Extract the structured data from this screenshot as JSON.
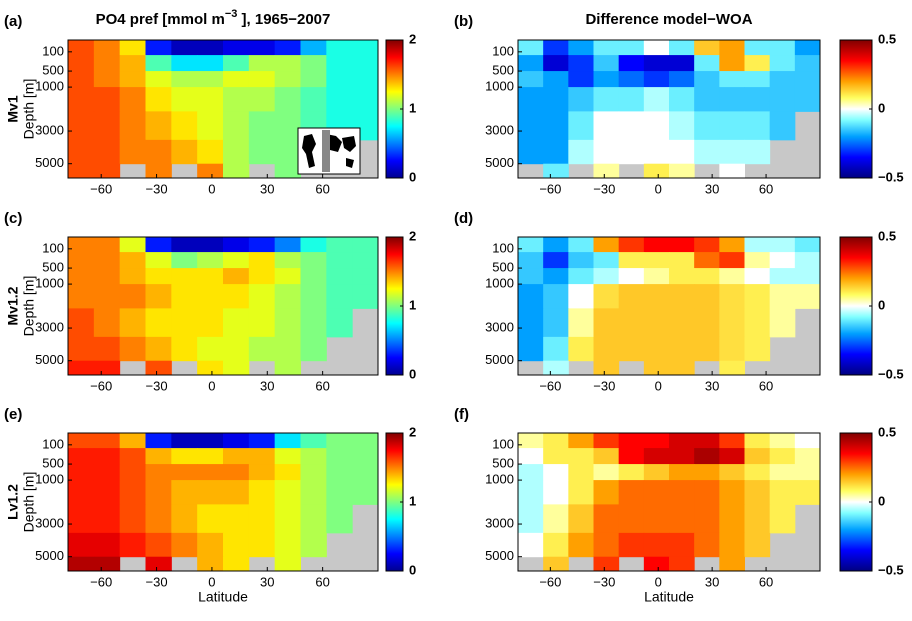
{
  "chart_data": [
    {
      "type": "heatmap",
      "panel": "(a)",
      "title": {
        "text": "PO4 pref [mmol m",
        "sup": "−3",
        "tail": " ], 1965−2007"
      },
      "row_label": "Mv1",
      "ylabel": "Depth [m]",
      "colormap": "jet",
      "x_edges": [
        -78,
        -64,
        -50,
        -36,
        -22,
        -8,
        6,
        20,
        34,
        48,
        62,
        76,
        90
      ],
      "y_edges": [
        0,
        150,
        500,
        1000,
        2000,
        3500,
        5000,
        6000
      ],
      "values": [
        [
          1.6,
          1.5,
          1.3,
          0.3,
          0.1,
          0.1,
          0.2,
          0.2,
          0.3,
          0.6,
          0.8,
          0.8
        ],
        [
          1.6,
          1.5,
          1.4,
          0.9,
          0.7,
          0.7,
          0.9,
          1.1,
          1.1,
          1.0,
          0.8,
          0.8
        ],
        [
          1.6,
          1.5,
          1.4,
          1.2,
          1.1,
          1.1,
          1.2,
          1.2,
          1.1,
          1.0,
          0.8,
          0.8
        ],
        [
          1.6,
          1.6,
          1.5,
          1.3,
          1.2,
          1.2,
          1.1,
          1.1,
          1.0,
          0.9,
          0.8,
          0.8
        ],
        [
          1.6,
          1.6,
          1.5,
          1.4,
          1.3,
          1.2,
          1.1,
          1.0,
          1.0,
          0.9,
          0.8,
          0.8
        ],
        [
          1.6,
          1.6,
          1.5,
          1.5,
          1.4,
          1.3,
          1.1,
          1.0,
          1.0,
          0.9,
          null,
          null
        ],
        [
          1.6,
          1.6,
          null,
          1.5,
          null,
          1.5,
          1.1,
          null,
          1.0,
          null,
          null,
          null
        ]
      ],
      "xlim": [
        -78,
        90
      ],
      "ylim": [
        0,
        6000
      ],
      "xticks": [
        {
          "value": -60,
          "label": "−60"
        },
        {
          "value": -30,
          "label": "−30"
        },
        0,
        30,
        60
      ],
      "yticks": [
        100,
        500,
        1000,
        3000,
        5000
      ],
      "clim": [
        0,
        2
      ],
      "cticks": [
        0,
        1,
        2
      ]
    },
    {
      "type": "heatmap",
      "panel": "(b)",
      "title": {
        "text": "Difference model−WOA"
      },
      "colormap": "diverging",
      "x_edges": [
        -78,
        -64,
        -50,
        -36,
        -22,
        -8,
        6,
        20,
        34,
        48,
        62,
        76,
        90
      ],
      "y_edges": [
        0,
        150,
        500,
        1000,
        2000,
        3500,
        5000,
        6000
      ],
      "values": [
        [
          -0.1,
          -0.3,
          -0.2,
          -0.1,
          -0.1,
          0.0,
          -0.1,
          0.15,
          0.2,
          -0.1,
          -0.1,
          -0.2
        ],
        [
          -0.2,
          -0.4,
          -0.3,
          -0.15,
          -0.35,
          -0.4,
          -0.4,
          -0.1,
          0.2,
          0.1,
          -0.1,
          -0.15
        ],
        [
          -0.15,
          -0.2,
          -0.3,
          -0.2,
          -0.25,
          -0.3,
          -0.25,
          -0.15,
          -0.1,
          -0.1,
          -0.15,
          -0.15
        ],
        [
          -0.2,
          -0.2,
          -0.15,
          -0.1,
          -0.1,
          -0.05,
          -0.1,
          -0.15,
          -0.15,
          -0.15,
          -0.15,
          -0.15
        ],
        [
          -0.2,
          -0.2,
          -0.1,
          0.0,
          0.0,
          0.0,
          -0.05,
          -0.1,
          -0.1,
          -0.1,
          -0.15,
          null
        ],
        [
          -0.2,
          -0.2,
          -0.05,
          0.0,
          0.0,
          0.0,
          0.0,
          -0.05,
          -0.05,
          -0.05,
          null,
          null
        ],
        [
          null,
          -0.1,
          null,
          0.05,
          null,
          0.1,
          0.05,
          null,
          0.0,
          null,
          null,
          null
        ]
      ],
      "xlim": [
        -78,
        90
      ],
      "ylim": [
        0,
        6000
      ],
      "xticks": [
        {
          "value": -60,
          "label": "−60"
        },
        {
          "value": -30,
          "label": "−30"
        },
        0,
        30,
        60
      ],
      "yticks": [
        100,
        500,
        1000,
        3000,
        5000
      ],
      "clim": [
        -0.5,
        0.5
      ],
      "cticks": [
        {
          "value": -0.5,
          "label": "−0.5"
        },
        0,
        0.5
      ]
    },
    {
      "type": "heatmap",
      "panel": "(c)",
      "row_label": "Mv1.2",
      "ylabel": "Depth [m]",
      "colormap": "jet",
      "x_edges": [
        -78,
        -64,
        -50,
        -36,
        -22,
        -8,
        6,
        20,
        34,
        48,
        62,
        76,
        90
      ],
      "y_edges": [
        0,
        150,
        500,
        1000,
        2000,
        3500,
        5000,
        6000
      ],
      "values": [
        [
          1.5,
          1.5,
          1.2,
          0.3,
          0.1,
          0.1,
          0.2,
          0.3,
          0.5,
          0.8,
          0.9,
          0.9
        ],
        [
          1.5,
          1.5,
          1.4,
          1.2,
          1.0,
          1.1,
          1.2,
          1.3,
          1.1,
          1.0,
          0.9,
          0.9
        ],
        [
          1.5,
          1.5,
          1.4,
          1.3,
          1.3,
          1.3,
          1.4,
          1.3,
          1.2,
          1.0,
          0.9,
          0.9
        ],
        [
          1.5,
          1.5,
          1.5,
          1.4,
          1.3,
          1.3,
          1.3,
          1.2,
          1.1,
          1.0,
          0.9,
          0.9
        ],
        [
          1.6,
          1.5,
          1.4,
          1.3,
          1.3,
          1.3,
          1.2,
          1.2,
          1.1,
          1.0,
          0.9,
          null
        ],
        [
          1.6,
          1.6,
          1.5,
          1.4,
          1.3,
          1.2,
          1.2,
          1.1,
          1.1,
          1.0,
          null,
          null
        ],
        [
          1.7,
          1.7,
          null,
          1.6,
          null,
          1.3,
          1.2,
          null,
          1.1,
          null,
          null,
          null
        ]
      ],
      "xlim": [
        -78,
        90
      ],
      "ylim": [
        0,
        6000
      ],
      "xticks": [
        {
          "value": -60,
          "label": "−60"
        },
        {
          "value": -30,
          "label": "−30"
        },
        0,
        30,
        60
      ],
      "yticks": [
        100,
        500,
        1000,
        3000,
        5000
      ],
      "clim": [
        0,
        2
      ],
      "cticks": [
        0,
        1,
        2
      ]
    },
    {
      "type": "heatmap",
      "panel": "(d)",
      "colormap": "diverging",
      "x_edges": [
        -78,
        -64,
        -50,
        -36,
        -22,
        -8,
        6,
        20,
        34,
        48,
        62,
        76,
        90
      ],
      "y_edges": [
        0,
        150,
        500,
        1000,
        2000,
        3500,
        5000,
        6000
      ],
      "values": [
        [
          -0.1,
          -0.2,
          -0.1,
          0.2,
          0.3,
          0.35,
          0.35,
          0.3,
          0.2,
          -0.05,
          -0.05,
          -0.1
        ],
        [
          -0.15,
          -0.3,
          -0.15,
          -0.1,
          0.1,
          0.1,
          0.1,
          0.25,
          0.3,
          0.05,
          0.0,
          -0.05
        ],
        [
          -0.15,
          -0.2,
          -0.1,
          -0.05,
          0.0,
          0.05,
          0.1,
          0.1,
          0.05,
          0.0,
          -0.05,
          -0.05
        ],
        [
          -0.2,
          -0.15,
          0.0,
          0.12,
          0.15,
          0.15,
          0.15,
          0.15,
          0.12,
          0.1,
          0.05,
          0.05
        ],
        [
          -0.2,
          -0.15,
          0.05,
          0.15,
          0.15,
          0.15,
          0.15,
          0.15,
          0.12,
          0.1,
          0.05,
          null
        ],
        [
          -0.2,
          -0.1,
          0.1,
          0.15,
          0.15,
          0.15,
          0.15,
          0.15,
          0.12,
          0.1,
          null,
          null
        ],
        [
          null,
          -0.05,
          null,
          0.15,
          null,
          0.15,
          0.15,
          null,
          0.1,
          null,
          null,
          null
        ]
      ],
      "xlim": [
        -78,
        90
      ],
      "ylim": [
        0,
        6000
      ],
      "xticks": [
        {
          "value": -60,
          "label": "−60"
        },
        {
          "value": -30,
          "label": "−30"
        },
        0,
        30,
        60
      ],
      "yticks": [
        100,
        500,
        1000,
        3000,
        5000
      ],
      "clim": [
        -0.5,
        0.5
      ],
      "cticks": [
        {
          "value": -0.5,
          "label": "−0.5"
        },
        0,
        0.5
      ]
    },
    {
      "type": "heatmap",
      "panel": "(e)",
      "row_label": "Lv1.2",
      "ylabel": "Depth [m]",
      "xlabel": "Latitude",
      "colormap": "jet",
      "x_edges": [
        -78,
        -64,
        -50,
        -36,
        -22,
        -8,
        6,
        20,
        34,
        48,
        62,
        76,
        90
      ],
      "y_edges": [
        0,
        150,
        500,
        1000,
        2000,
        3500,
        5000,
        6000
      ],
      "values": [
        [
          1.6,
          1.6,
          1.4,
          0.3,
          0.1,
          0.1,
          0.2,
          0.3,
          0.7,
          0.9,
          1.0,
          1.0
        ],
        [
          1.7,
          1.7,
          1.6,
          1.4,
          1.3,
          1.3,
          1.4,
          1.4,
          1.2,
          1.1,
          1.0,
          1.0
        ],
        [
          1.7,
          1.7,
          1.6,
          1.5,
          1.5,
          1.5,
          1.5,
          1.4,
          1.3,
          1.1,
          1.0,
          1.0
        ],
        [
          1.7,
          1.7,
          1.6,
          1.5,
          1.4,
          1.4,
          1.4,
          1.3,
          1.2,
          1.1,
          1.0,
          1.0
        ],
        [
          1.7,
          1.7,
          1.6,
          1.5,
          1.4,
          1.3,
          1.3,
          1.3,
          1.2,
          1.1,
          1.0,
          null
        ],
        [
          1.8,
          1.8,
          1.7,
          1.6,
          1.5,
          1.4,
          1.3,
          1.3,
          1.2,
          1.1,
          null,
          null
        ],
        [
          1.9,
          1.9,
          null,
          1.8,
          null,
          1.4,
          1.3,
          null,
          1.2,
          null,
          null,
          null
        ]
      ],
      "xlim": [
        -78,
        90
      ],
      "ylim": [
        0,
        6000
      ],
      "xticks": [
        {
          "value": -60,
          "label": "−60"
        },
        {
          "value": -30,
          "label": "−30"
        },
        0,
        30,
        60
      ],
      "yticks": [
        100,
        500,
        1000,
        3000,
        5000
      ],
      "clim": [
        0,
        2
      ],
      "cticks": [
        0,
        1,
        2
      ]
    },
    {
      "type": "heatmap",
      "panel": "(f)",
      "xlabel": "Latitude",
      "colormap": "diverging",
      "x_edges": [
        -78,
        -64,
        -50,
        -36,
        -22,
        -8,
        6,
        20,
        34,
        48,
        62,
        76,
        90
      ],
      "y_edges": [
        0,
        150,
        500,
        1000,
        2000,
        3500,
        5000,
        6000
      ],
      "values": [
        [
          0.05,
          0.1,
          0.2,
          0.3,
          0.35,
          0.35,
          0.4,
          0.4,
          0.3,
          0.1,
          0.05,
          0.0
        ],
        [
          0.0,
          0.1,
          0.1,
          0.15,
          0.35,
          0.4,
          0.4,
          0.45,
          0.4,
          0.15,
          0.1,
          0.05
        ],
        [
          -0.05,
          0.0,
          0.1,
          0.05,
          0.1,
          0.15,
          0.2,
          0.2,
          0.15,
          0.1,
          0.05,
          0.05
        ],
        [
          -0.05,
          0.0,
          0.1,
          0.2,
          0.25,
          0.25,
          0.25,
          0.25,
          0.2,
          0.15,
          0.1,
          0.1
        ],
        [
          -0.05,
          0.05,
          0.15,
          0.25,
          0.25,
          0.25,
          0.25,
          0.25,
          0.2,
          0.15,
          0.1,
          null
        ],
        [
          0.0,
          0.1,
          0.2,
          0.25,
          0.3,
          0.3,
          0.3,
          0.25,
          0.2,
          0.15,
          null,
          null
        ],
        [
          null,
          0.15,
          null,
          0.3,
          null,
          0.35,
          0.3,
          null,
          0.2,
          null,
          null,
          null
        ]
      ],
      "xlim": [
        -78,
        90
      ],
      "ylim": [
        0,
        6000
      ],
      "xticks": [
        {
          "value": -60,
          "label": "−60"
        },
        {
          "value": -30,
          "label": "−30"
        },
        0,
        30,
        60
      ],
      "yticks": [
        100,
        500,
        1000,
        3000,
        5000
      ],
      "clim": [
        -0.5,
        0.5
      ],
      "cticks": [
        {
          "value": -0.5,
          "label": "−0.5"
        },
        0,
        0.5
      ]
    }
  ]
}
